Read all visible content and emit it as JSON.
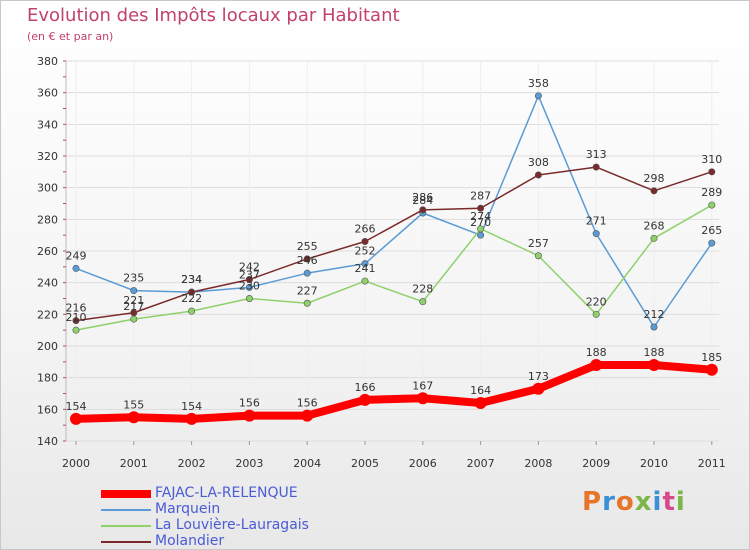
{
  "header": {
    "title": "Evolution des Impôts locaux par Habitant",
    "subtitle": "(en € et par an)"
  },
  "brand": {
    "logo_text": "Proxiti"
  },
  "colors": {
    "title": "#c1426c",
    "legend_text": "#4a5bd6",
    "grid": "#dddddd"
  },
  "chart_data": {
    "type": "line",
    "categories": [
      "2000",
      "2001",
      "2002",
      "2003",
      "2004",
      "2005",
      "2006",
      "2007",
      "2008",
      "2009",
      "2010",
      "2011"
    ],
    "ylim": [
      140,
      380
    ],
    "yticks": [
      140,
      160,
      180,
      200,
      220,
      240,
      260,
      280,
      300,
      320,
      340,
      360,
      380
    ],
    "grid": true,
    "legend_position": "bottom-left",
    "series": [
      {
        "name": "FAJAC-LA-RELENQUE",
        "color": "#ff0000",
        "values": [
          154,
          155,
          154,
          156,
          156,
          166,
          167,
          164,
          173,
          188,
          188,
          185
        ],
        "labels": [
          "154",
          "155",
          "154",
          "156",
          "156",
          "166",
          "167",
          "164",
          "173",
          "188",
          "188",
          "185"
        ]
      },
      {
        "name": "Marquein",
        "color": "#5b9bd5",
        "values": [
          249,
          235,
          234,
          237,
          246,
          252,
          284,
          270,
          358,
          271,
          212,
          265
        ],
        "labels": [
          "249",
          "235",
          "234",
          "237",
          "246",
          "252",
          "284",
          "270",
          "358",
          "271",
          "212",
          "265"
        ]
      },
      {
        "name": "La Louvière-Lauragais",
        "color": "#8ed16b",
        "values": [
          210,
          217,
          222,
          230,
          227,
          241,
          228,
          274,
          257,
          220,
          268,
          289
        ],
        "labels": [
          "210",
          "217",
          "222",
          "230",
          "227",
          "241",
          "228",
          "274",
          "257",
          "220",
          "268",
          "289"
        ]
      },
      {
        "name": "Molandier",
        "color": "#7a2a2a",
        "values": [
          216,
          221,
          234,
          242,
          255,
          266,
          286,
          287,
          308,
          313,
          298,
          310
        ],
        "labels": [
          "216",
          "221",
          "234",
          "242",
          "255",
          "266",
          "286",
          "287",
          "308",
          "313",
          "298",
          "310"
        ]
      }
    ]
  }
}
